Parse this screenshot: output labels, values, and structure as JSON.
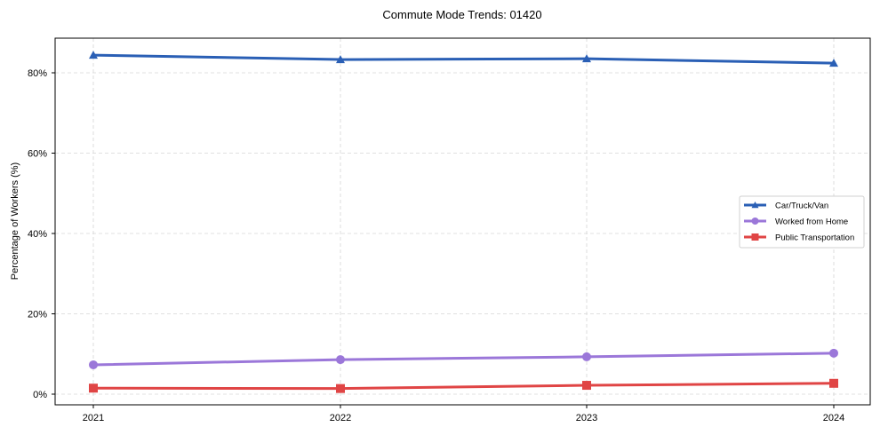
{
  "chart_data": {
    "type": "line",
    "title": "Commute Mode Trends: 01420",
    "xlabel": "",
    "ylabel": "Percentage of Workers (%)",
    "x": [
      "2021",
      "2022",
      "2023",
      "2024"
    ],
    "ylim": [
      -2.5,
      88.5
    ],
    "yticks": [
      0,
      20,
      40,
      60,
      80
    ],
    "ytick_labels": [
      "0%",
      "20%",
      "40%",
      "60%",
      "80%"
    ],
    "grid": true,
    "legend_position": "center right",
    "series": [
      {
        "name": "Car/Truck/Van",
        "values": [
          84.4,
          83.3,
          83.5,
          82.4
        ],
        "color": "#2a5fb5",
        "marker": "triangle"
      },
      {
        "name": "Worked from Home",
        "values": [
          7.3,
          8.6,
          9.3,
          10.2
        ],
        "color": "#9b77d9",
        "marker": "circle"
      },
      {
        "name": "Public Transportation",
        "values": [
          1.5,
          1.4,
          2.2,
          2.7
        ],
        "color": "#e04545",
        "marker": "square"
      }
    ]
  }
}
